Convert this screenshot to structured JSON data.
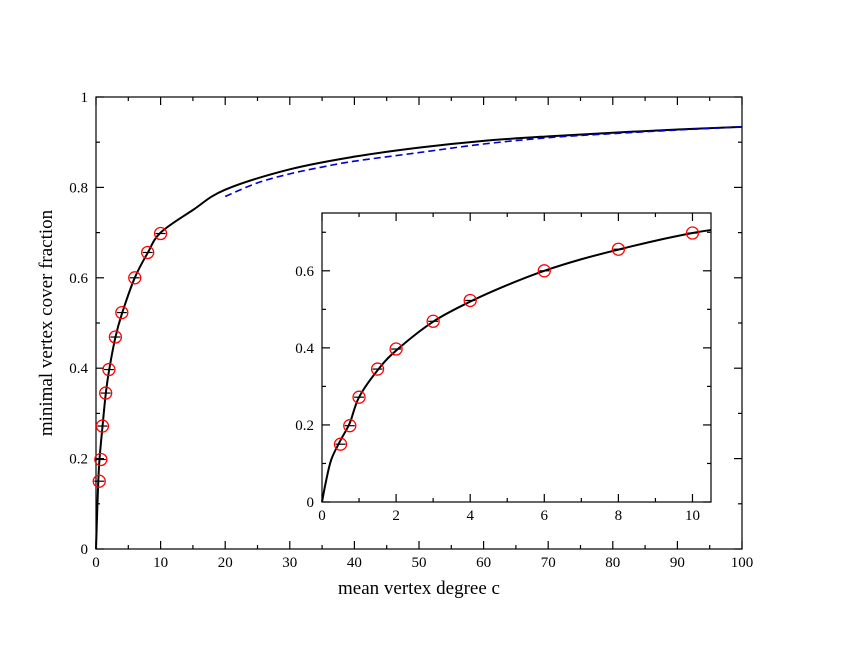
{
  "chart_data": [
    {
      "id": "main",
      "type": "line",
      "title": "",
      "xlabel": "mean vertex degree c",
      "ylabel": "minimal vertex cover fraction",
      "xlim": [
        0,
        100
      ],
      "ylim": [
        0,
        1
      ],
      "xticks": [
        0,
        10,
        20,
        30,
        40,
        50,
        60,
        70,
        80,
        90,
        100
      ],
      "yticks": [
        0,
        0.2,
        0.4,
        0.6,
        0.8,
        1
      ],
      "ytick_labels": [
        "0",
        "0.2",
        "0.4",
        "0.6",
        "0.8",
        "1"
      ],
      "grid": false,
      "series": [
        {
          "style": "solid",
          "color": "#000000",
          "x": [
            0,
            0.25,
            0.5,
            1,
            1.5,
            2,
            3,
            4,
            6,
            8,
            10,
            15,
            20,
            30,
            40,
            50,
            60,
            70,
            80,
            90,
            100
          ],
          "y": [
            0,
            0.11,
            0.19,
            0.27,
            0.342,
            0.393,
            0.468,
            0.52,
            0.6,
            0.655,
            0.7,
            0.75,
            0.795,
            0.84,
            0.868,
            0.888,
            0.903,
            0.913,
            0.921,
            0.928,
            0.934
          ]
        },
        {
          "style": "dashed",
          "color": "#0000cc",
          "x": [
            20,
            25,
            30,
            35,
            40,
            50,
            60,
            70,
            80,
            90,
            100
          ],
          "y": [
            0.78,
            0.81,
            0.83,
            0.845,
            0.858,
            0.877,
            0.896,
            0.91,
            0.919,
            0.927,
            0.934
          ]
        },
        {
          "style": "markers",
          "marker": "circle",
          "color": "#ff0000",
          "x": [
            0.5,
            0.75,
            1,
            1.5,
            2,
            3,
            4,
            6,
            8,
            10
          ],
          "y": [
            0.15,
            0.198,
            0.272,
            0.345,
            0.397,
            0.469,
            0.523,
            0.6,
            0.656,
            0.698
          ]
        }
      ]
    },
    {
      "id": "inset",
      "type": "line",
      "title": "",
      "xlabel": "",
      "ylabel": "",
      "xlim": [
        0,
        10.5
      ],
      "ylim": [
        0,
        0.75
      ],
      "xticks": [
        0,
        2,
        4,
        6,
        8,
        10
      ],
      "yticks": [
        0,
        0.2,
        0.4,
        0.6
      ],
      "ytick_labels": [
        "0",
        "0.2",
        "0.4",
        "0.6"
      ],
      "grid": false,
      "series": [
        {
          "style": "solid",
          "color": "#000000",
          "x": [
            0,
            0.1,
            0.25,
            0.5,
            0.75,
            1,
            1.5,
            2,
            3,
            4,
            5,
            6,
            7,
            8,
            9,
            10,
            10.5
          ],
          "y": [
            0,
            0.05,
            0.11,
            0.16,
            0.205,
            0.272,
            0.342,
            0.393,
            0.468,
            0.52,
            0.563,
            0.6,
            0.63,
            0.655,
            0.678,
            0.698,
            0.706
          ]
        },
        {
          "style": "markers",
          "marker": "circle",
          "color": "#ff0000",
          "x": [
            0.5,
            0.75,
            1,
            1.5,
            2,
            3,
            4,
            6,
            8,
            10
          ],
          "y": [
            0.15,
            0.198,
            0.272,
            0.345,
            0.397,
            0.469,
            0.523,
            0.6,
            0.656,
            0.698
          ]
        }
      ]
    }
  ]
}
